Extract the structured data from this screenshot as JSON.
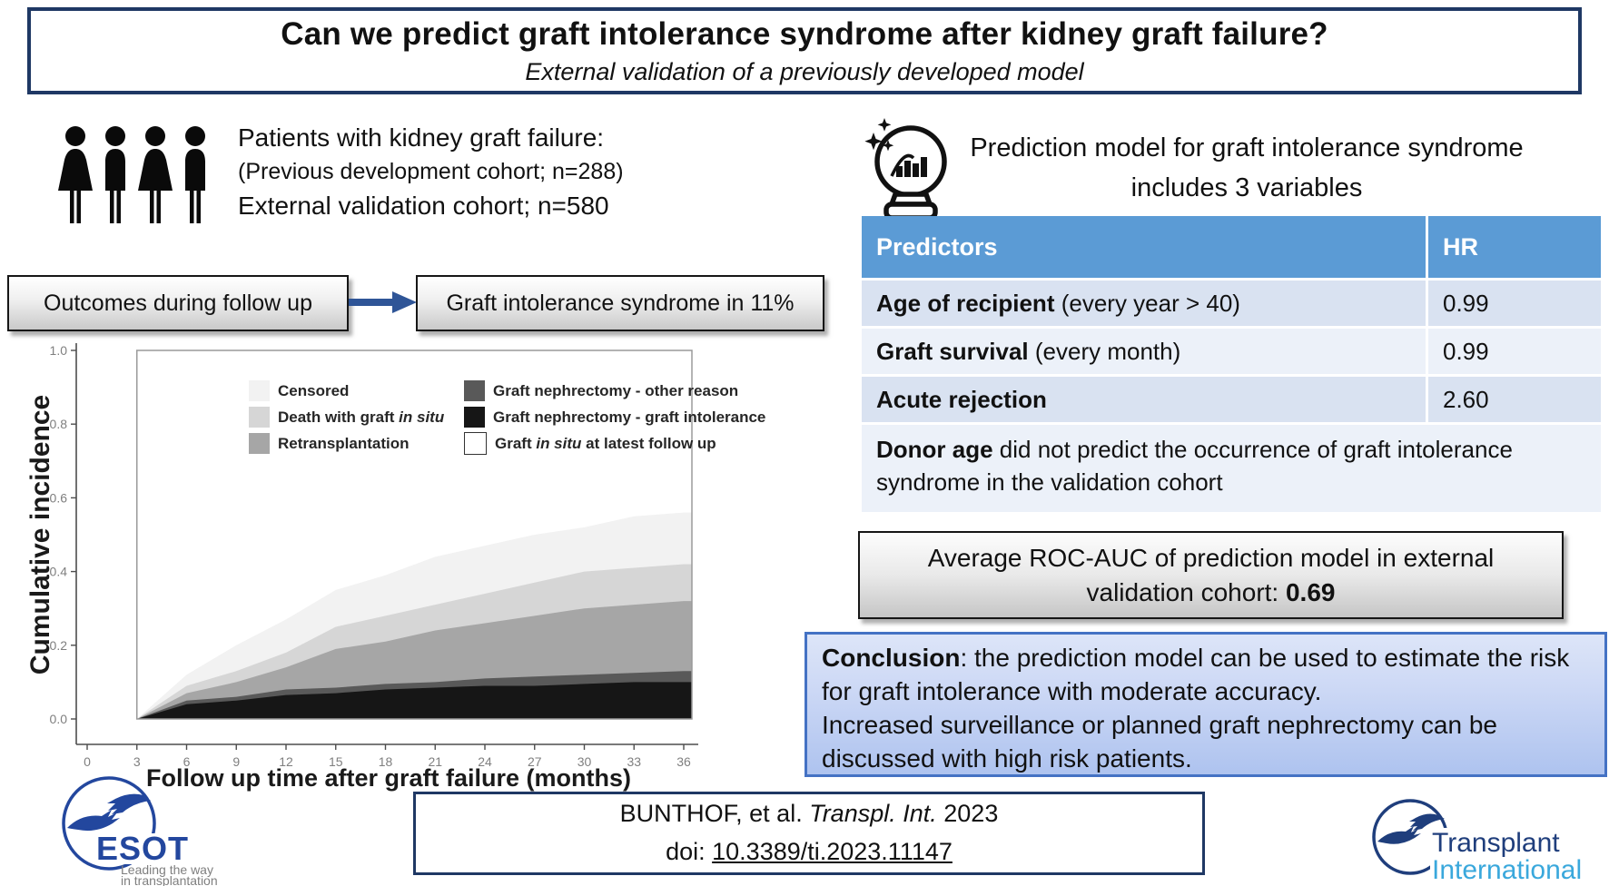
{
  "title": {
    "main": "Can we predict graft intolerance syndrome after kidney graft failure?",
    "subtitle": "External validation of a previously developed model"
  },
  "patients": {
    "line1": "Patients with kidney graft failure:",
    "line2": "(Previous development cohort; n=288)",
    "line3": "External validation cohort; n=580"
  },
  "flow": {
    "box1": "Outcomes during follow up",
    "box2": "Graft intolerance syndrome in 11%"
  },
  "prediction": {
    "heading": "Prediction model for graft intolerance syndrome includes 3 variables"
  },
  "table": {
    "header": {
      "predictors": "Predictors",
      "hr": "HR"
    },
    "rows": [
      {
        "bold": "Age of recipient",
        "rest": " (every year > 40)",
        "hr": "0.99"
      },
      {
        "bold": "Graft survival",
        "rest": " (every month)",
        "hr": "0.99"
      },
      {
        "bold": "Acute rejection",
        "rest": "",
        "hr": "2.60"
      }
    ],
    "note": {
      "bold": "Donor age",
      "rest": " did not predict the occurrence of graft intolerance syndrome in the validation cohort"
    }
  },
  "roc": {
    "text": "Average ROC-AUC of prediction model in external validation cohort: ",
    "value": "0.69"
  },
  "conclusion": {
    "bold": "Conclusion",
    "rest": ": the prediction model can be used to estimate the risk for graft intolerance with moderate accuracy.",
    "line2": "Increased surveillance or planned graft nephrectomy can be discussed with high risk patients."
  },
  "citation": {
    "authors": "BUNTHOF, et al. ",
    "journal": "Transpl. Int.",
    "year": " 2023",
    "doi_label": "doi: ",
    "doi": "10.3389/ti.2023.11147"
  },
  "logos": {
    "esot": {
      "name": "ESOT",
      "tagline1": "Leading the way",
      "tagline2": "in transplantation"
    },
    "ti": {
      "line1": "Transplant",
      "line2": "International"
    }
  },
  "colors": {
    "navy_border": "#1F3864",
    "arrow_blue": "#2F5597",
    "table_header_blue": "#5B9BD5",
    "table_row_dark": "#D9E2F1",
    "table_row_light": "#ECF1F9",
    "conclusion_border": "#4472C4",
    "esot_blue": "#23479E",
    "ti_dark_blue": "#1F3E7C",
    "ti_light_blue": "#3AA8DC"
  },
  "chart_data": {
    "type": "area",
    "stacked": true,
    "title": "",
    "xlabel": "Follow up time after graft failure (months)",
    "ylabel": "Cumulative incidence",
    "x_ticks": [
      0,
      3,
      6,
      9,
      12,
      15,
      18,
      21,
      24,
      27,
      30,
      33,
      36
    ],
    "y_ticks": [
      "0.0",
      "0.2",
      "0.4",
      "0.6",
      "0.8",
      "1.0"
    ],
    "xlim": [
      0,
      37
    ],
    "ylim": [
      0,
      1
    ],
    "grid": false,
    "legend_position": "top-inside-two-columns",
    "x": [
      3,
      6,
      9,
      12,
      15,
      18,
      21,
      24,
      27,
      30,
      33,
      36
    ],
    "series": [
      {
        "name": "Graft nephrectomy - graft intolerance",
        "color": "#161616",
        "cumulative_top": [
          0,
          0.04,
          0.05,
          0.065,
          0.07,
          0.08,
          0.085,
          0.09,
          0.09,
          0.095,
          0.1,
          0.1
        ]
      },
      {
        "name": "Graft nephrectomy - other reason",
        "color": "#595959",
        "cumulative_top": [
          0,
          0.05,
          0.06,
          0.08,
          0.085,
          0.095,
          0.1,
          0.11,
          0.115,
          0.12,
          0.125,
          0.13
        ]
      },
      {
        "name": "Retransplantation",
        "color": "#a6a6a6",
        "cumulative_top": [
          0,
          0.07,
          0.1,
          0.14,
          0.19,
          0.21,
          0.24,
          0.26,
          0.28,
          0.3,
          0.31,
          0.32
        ]
      },
      {
        "name": "Death with graft in situ",
        "color": "#d6d6d6",
        "cumulative_top": [
          0,
          0.09,
          0.13,
          0.18,
          0.25,
          0.28,
          0.31,
          0.34,
          0.37,
          0.4,
          0.41,
          0.42
        ]
      },
      {
        "name": "Censored",
        "color": "#f2f2f2",
        "cumulative_top": [
          0,
          0.12,
          0.2,
          0.27,
          0.35,
          0.39,
          0.44,
          0.47,
          0.5,
          0.52,
          0.55,
          0.56
        ]
      }
    ],
    "legend": [
      {
        "color": "#f2f2f2",
        "segments": [
          {
            "t": "Censored"
          }
        ]
      },
      {
        "color": "#d6d6d6",
        "segments": [
          {
            "t": "Death with graft "
          },
          {
            "t": "in situ",
            "i": true
          }
        ]
      },
      {
        "color": "#a6a6a6",
        "segments": [
          {
            "t": "Retransplantation"
          }
        ]
      },
      {
        "color": "#595959",
        "segments": [
          {
            "t": "Graft nephrectomy - other reason"
          }
        ]
      },
      {
        "color": "#161616",
        "segments": [
          {
            "t": "Graft nephrectomy - graft intolerance"
          }
        ]
      },
      {
        "color": "#ffffff",
        "border": true,
        "segments": [
          {
            "t": "Graft "
          },
          {
            "t": "in situ",
            "i": true
          },
          {
            "t": " at latest follow up"
          }
        ]
      }
    ]
  }
}
